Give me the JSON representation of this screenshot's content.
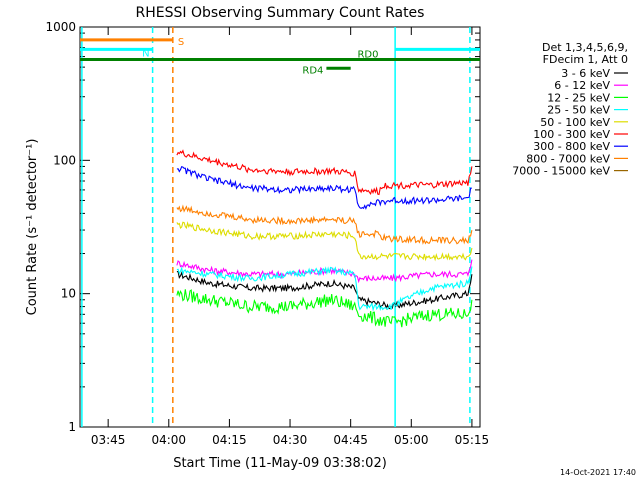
{
  "chart_data": {
    "type": "line",
    "title": "RHESSI Observing Summary Count Rates",
    "xlabel": "Start Time (11-May-09 03:38:02)",
    "ylabel": "Count Rate (s⁻¹ detector⁻¹)",
    "y_scale": "log",
    "ylim": [
      1,
      1000
    ],
    "xlim": [
      "03:38:02",
      "05:17:00"
    ],
    "x_ticks": [
      "03:45",
      "04:00",
      "04:15",
      "04:30",
      "04:45",
      "05:00",
      "05:15"
    ],
    "y_ticks": [
      "1",
      "10",
      "100",
      "1000"
    ],
    "legend_header": [
      "Det 1,3,4,5,6,9,",
      "FDecim 1, Att 0"
    ],
    "legend_placement": "right",
    "footer_date": "14-Oct-2021 17:40",
    "series": [
      {
        "name": "3 - 6 keV",
        "color": "#000000",
        "x": [
          "04:02",
          "04:10",
          "04:20",
          "04:30",
          "04:40",
          "04:46",
          "04:47",
          "04:55",
          "05:05",
          "05:14",
          "05:15"
        ],
        "y": [
          14,
          12,
          11,
          11,
          12,
          11,
          9,
          8,
          9,
          10,
          14
        ]
      },
      {
        "name": "6 - 12 keV",
        "color": "#ff00ff",
        "x": [
          "04:02",
          "04:10",
          "04:20",
          "04:30",
          "04:40",
          "04:46",
          "04:47",
          "04:55",
          "05:05",
          "05:14",
          "05:15"
        ],
        "y": [
          17,
          15,
          14,
          14,
          15,
          14,
          13,
          13,
          14,
          14,
          18
        ]
      },
      {
        "name": "12 - 25 keV",
        "color": "#00ff00",
        "x": [
          "04:02",
          "04:10",
          "04:20",
          "04:30",
          "04:40",
          "04:46",
          "04:47",
          "04:55",
          "05:05",
          "05:14",
          "05:15"
        ],
        "y": [
          10,
          9,
          8,
          8,
          9,
          8,
          7,
          6,
          7,
          7,
          9
        ]
      },
      {
        "name": "25 - 50 keV",
        "color": "#00ffff",
        "x": [
          "04:02",
          "04:10",
          "04:20",
          "04:30",
          "04:40",
          "04:46",
          "04:47",
          "04:55",
          "05:05",
          "05:14",
          "05:15"
        ],
        "y": [
          15,
          14,
          13,
          14,
          15,
          14,
          8,
          8,
          11,
          12,
          16
        ]
      },
      {
        "name": "50 - 100 keV",
        "color": "#dddd00",
        "x": [
          "04:02",
          "04:10",
          "04:20",
          "04:30",
          "04:40",
          "04:46",
          "04:47",
          "04:55",
          "05:05",
          "05:14",
          "05:15"
        ],
        "y": [
          33,
          30,
          27,
          27,
          28,
          27,
          19,
          19,
          19,
          19,
          22
        ]
      },
      {
        "name": "100 - 300 keV",
        "color": "#ff0000",
        "x": [
          "04:02",
          "04:10",
          "04:20",
          "04:30",
          "04:40",
          "04:46",
          "04:47",
          "04:52",
          "04:53",
          "05:05",
          "05:14",
          "05:15"
        ],
        "y": [
          115,
          100,
          85,
          82,
          83,
          80,
          60,
          58,
          65,
          65,
          68,
          90
        ]
      },
      {
        "name": "300 - 800 keV",
        "color": "#0000ff",
        "x": [
          "04:02",
          "04:10",
          "04:20",
          "04:30",
          "04:40",
          "04:46",
          "04:47",
          "04:55",
          "05:05",
          "05:14",
          "05:15"
        ],
        "y": [
          88,
          72,
          62,
          60,
          62,
          60,
          45,
          50,
          50,
          52,
          62
        ]
      },
      {
        "name": "800 - 7000 keV",
        "color": "#ff8000",
        "x": [
          "04:02",
          "04:10",
          "04:20",
          "04:30",
          "04:40",
          "04:46",
          "04:47",
          "04:52",
          "04:53",
          "05:05",
          "05:14",
          "05:15"
        ],
        "y": [
          44,
          40,
          36,
          35,
          36,
          35,
          28,
          28,
          26,
          25,
          25,
          30
        ]
      },
      {
        "name": "7000 - 15000 keV",
        "color": "#996600",
        "x": [],
        "y": []
      }
    ],
    "annotations": [
      {
        "label": "S",
        "color": "#ff8000",
        "kind": "bar",
        "x_start": "03:38:02",
        "x_end": "04:01",
        "y": 800
      },
      {
        "label": "N",
        "color": "#00ffff",
        "kind": "bar",
        "x_start": "03:38:02",
        "x_end": "03:56",
        "y": 680
      },
      {
        "label": "N",
        "color": "#00ffff",
        "kind": "bar",
        "x_start": "04:56",
        "x_end": "05:17:00",
        "y": 680
      },
      {
        "label": "RD0",
        "color": "#008000",
        "kind": "bar",
        "x_start": "03:38:02",
        "x_end": "05:17:00",
        "y": 570
      },
      {
        "label": "RD4",
        "color": "#008000",
        "kind": "bar",
        "x_start": "04:39",
        "x_end": "04:45",
        "y": 490
      }
    ],
    "vertical_lines": [
      {
        "x": "03:38:30",
        "color": "#00ffff",
        "style": "solid"
      },
      {
        "x": "03:56",
        "color": "#00ffff",
        "style": "dashed"
      },
      {
        "x": "04:01",
        "color": "#ff8000",
        "style": "dashed"
      },
      {
        "x": "04:56",
        "color": "#00ffff",
        "style": "solid"
      },
      {
        "x": "05:14:30",
        "color": "#00ffff",
        "style": "dashed"
      }
    ]
  }
}
